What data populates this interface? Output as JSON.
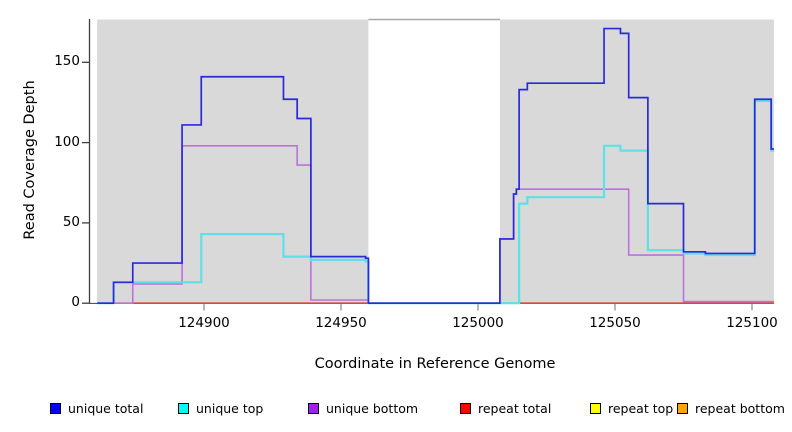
{
  "chart_data": {
    "type": "line",
    "subtype": "step-coverage",
    "title": "",
    "xlabel": "Coordinate in Reference Genome",
    "ylabel": "Read Coverage Depth",
    "xlim": [
      124861,
      125108
    ],
    "ylim": [
      0,
      177
    ],
    "xticks": [
      124900,
      124950,
      125000,
      125050,
      125100
    ],
    "yticks": [
      0,
      50,
      100,
      150
    ],
    "grid": false,
    "legend_position": "bottom",
    "band_color": "#d9d9d9",
    "gap_region": {
      "x0": 124960,
      "x1": 125008
    },
    "shaded_regions": [
      {
        "x0": 124861,
        "x1": 124960
      },
      {
        "x0": 125008,
        "x1": 125108
      }
    ],
    "axis_colors": {
      "spine": "#3f3f3f",
      "x_tick": "#909090",
      "gap_top_line": "#a8a8a8"
    },
    "series": [
      {
        "name": "unique total",
        "legend_color": "#0000ff",
        "line_color": "#2a2ada",
        "width": 1.7,
        "steps": [
          [
            124861,
            0
          ],
          [
            124867,
            13
          ],
          [
            124874,
            25
          ],
          [
            124892,
            111
          ],
          [
            124899,
            141
          ],
          [
            124929,
            127
          ],
          [
            124934,
            115
          ],
          [
            124939,
            29
          ],
          [
            124959,
            28
          ],
          [
            124960,
            0
          ],
          [
            125008,
            40
          ],
          [
            125013,
            68
          ],
          [
            125014,
            71
          ],
          [
            125015,
            133
          ],
          [
            125018,
            137
          ],
          [
            125046,
            171
          ],
          [
            125052,
            168
          ],
          [
            125055,
            128
          ],
          [
            125062,
            62
          ],
          [
            125075,
            32
          ],
          [
            125083,
            31
          ],
          [
            125101,
            127
          ],
          [
            125107,
            96
          ],
          [
            125108,
            96
          ]
        ]
      },
      {
        "name": "unique top",
        "legend_color": "#00ffff",
        "line_color": "#5fe0e9",
        "width": 2.2,
        "steps": [
          [
            124861,
            0
          ],
          [
            124867,
            13
          ],
          [
            124899,
            43
          ],
          [
            124929,
            29
          ],
          [
            124939,
            27
          ],
          [
            124959,
            26
          ],
          [
            124960,
            0
          ],
          [
            125015,
            62
          ],
          [
            125018,
            66
          ],
          [
            125046,
            98
          ],
          [
            125052,
            95
          ],
          [
            125062,
            33
          ],
          [
            125075,
            31
          ],
          [
            125083,
            30
          ],
          [
            125101,
            126
          ],
          [
            125107,
            95
          ],
          [
            125108,
            95
          ]
        ]
      },
      {
        "name": "unique bottom",
        "legend_color": "#a020f0",
        "line_color": "#bc72dc",
        "width": 1.6,
        "steps": [
          [
            124861,
            0
          ],
          [
            124874,
            12
          ],
          [
            124892,
            98
          ],
          [
            124934,
            86
          ],
          [
            124939,
            2
          ],
          [
            124960,
            0
          ],
          [
            125008,
            40
          ],
          [
            125013,
            68
          ],
          [
            125014,
            71
          ],
          [
            125055,
            30
          ],
          [
            125075,
            1
          ],
          [
            125108,
            1
          ]
        ]
      },
      {
        "name": "repeat total",
        "legend_color": "#ff0000",
        "line_color": "#e03030",
        "width": 1.3,
        "steps": [
          [
            124861,
            0
          ],
          [
            125108,
            0
          ]
        ]
      },
      {
        "name": "repeat top",
        "legend_color": "#ffff00",
        "line_color": "#f5e928",
        "width": 1.3,
        "steps": [
          [
            124861,
            0
          ],
          [
            125108,
            0
          ]
        ]
      },
      {
        "name": "repeat bottom",
        "legend_color": "#ffa500",
        "line_color": "#ff9e1e",
        "width": 1.7,
        "steps": [
          [
            124861,
            0
          ],
          [
            125108,
            0
          ]
        ]
      }
    ]
  }
}
